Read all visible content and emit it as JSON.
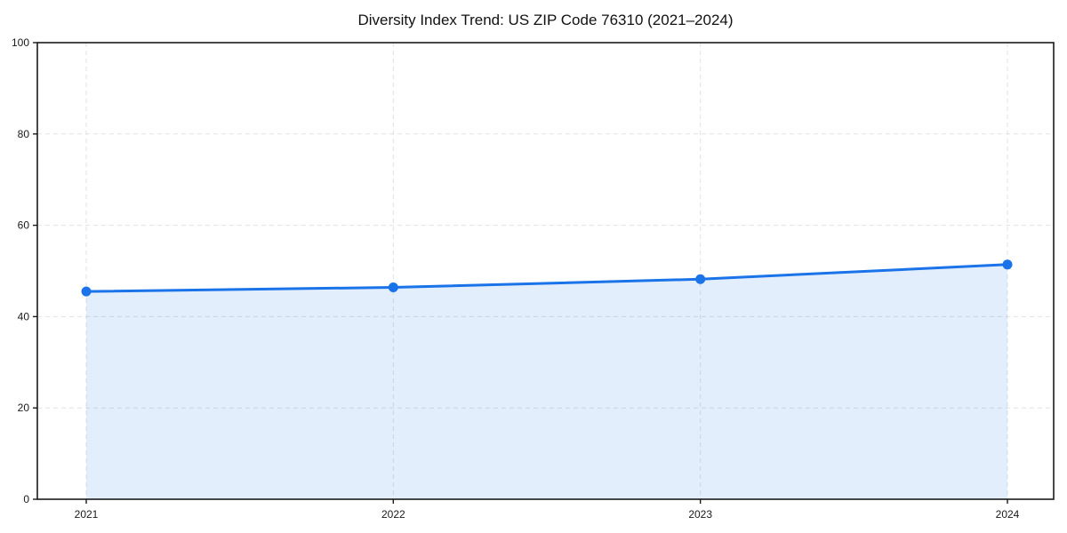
{
  "title": "Diversity Index Trend: US ZIP Code 76310 (2021–2024)",
  "chart_data": {
    "type": "line",
    "title": "Diversity Index Trend: US ZIP Code 76310 (2021–2024)",
    "categories": [
      "2021",
      "2022",
      "2023",
      "2024"
    ],
    "series": [
      {
        "name": "Diversity Index",
        "values": [
          45.5,
          46.4,
          48.2,
          51.4
        ]
      }
    ],
    "xlabel": "",
    "ylabel": "",
    "ylim": [
      0,
      100
    ],
    "yticks": [
      0,
      20,
      40,
      60,
      80,
      100
    ],
    "grid": true,
    "grid_style": "dashed",
    "legend_position": "none",
    "area_fill": true,
    "markers": true,
    "colors": {
      "line": "#1a73e8",
      "marker": "#1a73e8",
      "fill": "rgba(26,115,232,0.12)",
      "grid": "#e2e2e2",
      "axis": "#1a1a1a",
      "text": "#1a1a1a",
      "background": "#ffffff"
    }
  }
}
